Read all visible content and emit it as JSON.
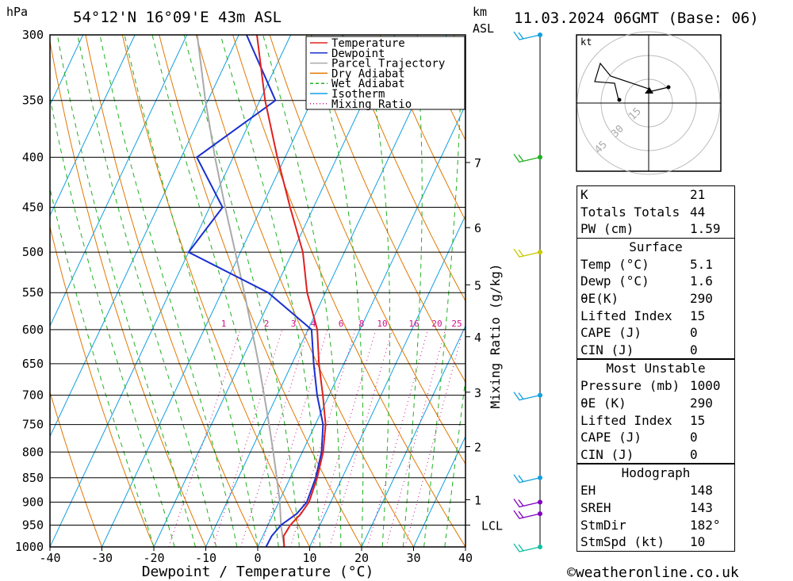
{
  "header": {
    "hpa_label": "hPa",
    "location": "54°12'N 16°09'E 43m ASL",
    "km_label": "km",
    "asl_label": "ASL",
    "datetime": "11.03.2024 06GMT (Base: 06)"
  },
  "footer": {
    "copyright": "©weatheronline.co.uk"
  },
  "chart_data": {
    "type": "skew-t",
    "xlabel": "Dewpoint / Temperature (°C)",
    "ylabel_right": "Mixing Ratio (g/kg)",
    "x_ticks": [
      -40,
      -30,
      -20,
      -10,
      0,
      10,
      20,
      30,
      40
    ],
    "pressure_levels": [
      300,
      350,
      400,
      450,
      500,
      550,
      600,
      650,
      700,
      750,
      800,
      850,
      900,
      950,
      1000
    ],
    "height_km_labels": [
      {
        "km": "7",
        "p": 405
      },
      {
        "km": "6",
        "p": 472
      },
      {
        "km": "5",
        "p": 540
      },
      {
        "km": "4",
        "p": 610
      },
      {
        "km": "3",
        "p": 695
      },
      {
        "km": "2",
        "p": 790
      },
      {
        "km": "1",
        "p": 895
      },
      {
        "km": "LCL",
        "p": 950
      }
    ],
    "mixing_ratio_labels": [
      "1",
      "2",
      "3",
      "4",
      "6",
      "8",
      "10",
      "16",
      "20",
      "25"
    ],
    "mixing_ratio_values": [
      1,
      2,
      3,
      4,
      6,
      8,
      10,
      16,
      20,
      25
    ],
    "legend": [
      "Temperature",
      "Dewpoint",
      "Parcel Trajectory",
      "Dry Adiabat",
      "Wet Adiabat",
      "Isotherm",
      "Mixing Ratio"
    ],
    "legend_colors": [
      "#e02020",
      "#1a2fd0",
      "#aaaaaa",
      "#e07800",
      "#20b020",
      "#10a0e0",
      "#d0108a"
    ],
    "series": [
      {
        "name": "Temperature",
        "color": "#e02020",
        "points": [
          [
            1000,
            5.1
          ],
          [
            975,
            4.0
          ],
          [
            950,
            4.3
          ],
          [
            925,
            5.3
          ],
          [
            900,
            5.8
          ],
          [
            850,
            5.2
          ],
          [
            800,
            4.0
          ],
          [
            750,
            2.0
          ],
          [
            700,
            -1.2
          ],
          [
            650,
            -4.8
          ],
          [
            600,
            -8.2
          ],
          [
            550,
            -13.5
          ],
          [
            500,
            -18.0
          ],
          [
            450,
            -24.5
          ],
          [
            400,
            -31.5
          ],
          [
            350,
            -39.0
          ],
          [
            300,
            -46.5
          ]
        ]
      },
      {
        "name": "Dewpoint",
        "color": "#1a2fd0",
        "points": [
          [
            1000,
            1.6
          ],
          [
            975,
            1.7
          ],
          [
            950,
            2.5
          ],
          [
            925,
            4.5
          ],
          [
            900,
            5.4
          ],
          [
            850,
            4.9
          ],
          [
            800,
            3.7
          ],
          [
            750,
            1.5
          ],
          [
            700,
            -2.3
          ],
          [
            650,
            -5.8
          ],
          [
            600,
            -9.3
          ],
          [
            550,
            -21.0
          ],
          [
            500,
            -40.0
          ],
          [
            450,
            -37.5
          ],
          [
            400,
            -47.0
          ],
          [
            350,
            -37.0
          ],
          [
            300,
            -48.5
          ]
        ]
      },
      {
        "name": "Parcel Trajectory",
        "color": "#aaaaaa",
        "points": [
          [
            1000,
            5.1
          ],
          [
            950,
            2.5
          ],
          [
            900,
            0.2
          ],
          [
            850,
            -2.6
          ],
          [
            800,
            -5.6
          ],
          [
            750,
            -8.9
          ],
          [
            700,
            -12.5
          ],
          [
            650,
            -16.4
          ],
          [
            600,
            -20.8
          ],
          [
            550,
            -25.6
          ],
          [
            500,
            -31.0
          ],
          [
            450,
            -37.0
          ],
          [
            400,
            -43.5
          ],
          [
            350,
            -50.5
          ],
          [
            300,
            -58.0
          ]
        ]
      }
    ],
    "wind_barbs": [
      {
        "p": 300,
        "color": "#10a0e0"
      },
      {
        "p": 400,
        "color": "#20b020"
      },
      {
        "p": 500,
        "color": "#c8c800"
      },
      {
        "p": 700,
        "color": "#10a0e0"
      },
      {
        "p": 850,
        "color": "#10a0e0"
      },
      {
        "p": 900,
        "color": "#8000c0"
      },
      {
        "p": 925,
        "color": "#8000c0"
      },
      {
        "p": 1000,
        "color": "#10c0a0"
      }
    ],
    "hodograph": {
      "unit": "kt",
      "ring_labels": [
        "15",
        "30",
        "45"
      ]
    }
  },
  "indices": {
    "general": [
      {
        "label": "K",
        "value": "21"
      },
      {
        "label": "Totals Totals",
        "value": "44"
      },
      {
        "label": "PW (cm)",
        "value": "1.59"
      }
    ],
    "surface_title": "Surface",
    "surface": [
      {
        "label": "Temp (°C)",
        "value": "5.1"
      },
      {
        "label": "Dewp (°C)",
        "value": "1.6"
      },
      {
        "label": "θE(K)",
        "value": "290"
      },
      {
        "label": "Lifted Index",
        "value": "15"
      },
      {
        "label": "CAPE (J)",
        "value": "0"
      },
      {
        "label": "CIN (J)",
        "value": "0"
      }
    ],
    "mu_title": "Most Unstable",
    "mu": [
      {
        "label": "Pressure (mb)",
        "value": "1000"
      },
      {
        "label": "θE (K)",
        "value": "290"
      },
      {
        "label": "Lifted Index",
        "value": "15"
      },
      {
        "label": "CAPE (J)",
        "value": "0"
      },
      {
        "label": "CIN (J)",
        "value": "0"
      }
    ],
    "hodo_title": "Hodograph",
    "hodo": [
      {
        "label": "EH",
        "value": "148"
      },
      {
        "label": "SREH",
        "value": "143"
      },
      {
        "label": "StmDir",
        "value": "182°"
      },
      {
        "label": "StmSpd (kt)",
        "value": "10"
      }
    ]
  }
}
